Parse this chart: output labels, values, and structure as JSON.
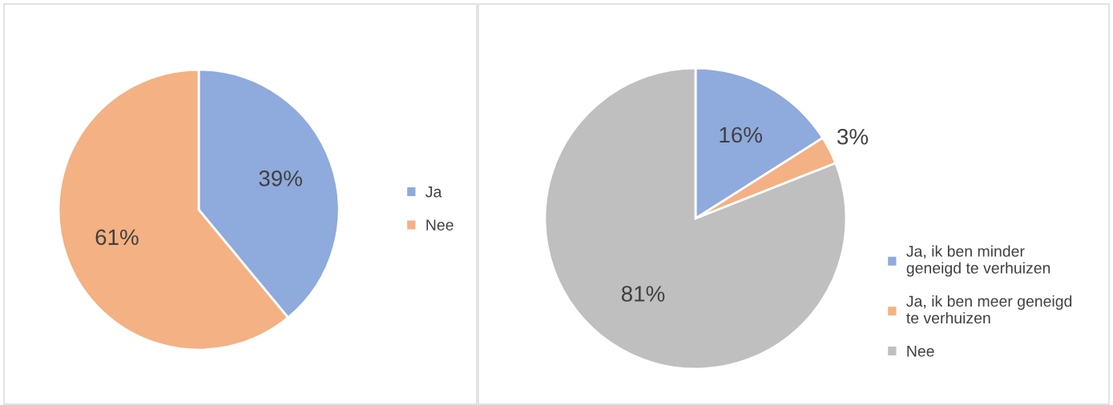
{
  "chart_data": [
    {
      "type": "pie",
      "categories": [
        "Ja",
        "Nee"
      ],
      "values": [
        39,
        61
      ],
      "value_labels": [
        "39%",
        "61%"
      ],
      "colors": [
        "#8faadc",
        "#f4b183"
      ],
      "legend": "right"
    },
    {
      "type": "pie",
      "categories": [
        "Ja, ik ben minder geneigd te verhuizen",
        "Ja, ik ben meer geneigd te verhuizen",
        "Nee"
      ],
      "values": [
        16,
        3,
        81
      ],
      "value_labels": [
        "16%",
        "3%",
        "81%"
      ],
      "colors": [
        "#8faadc",
        "#f4b183",
        "#bfbfbf"
      ],
      "legend": "right"
    }
  ]
}
